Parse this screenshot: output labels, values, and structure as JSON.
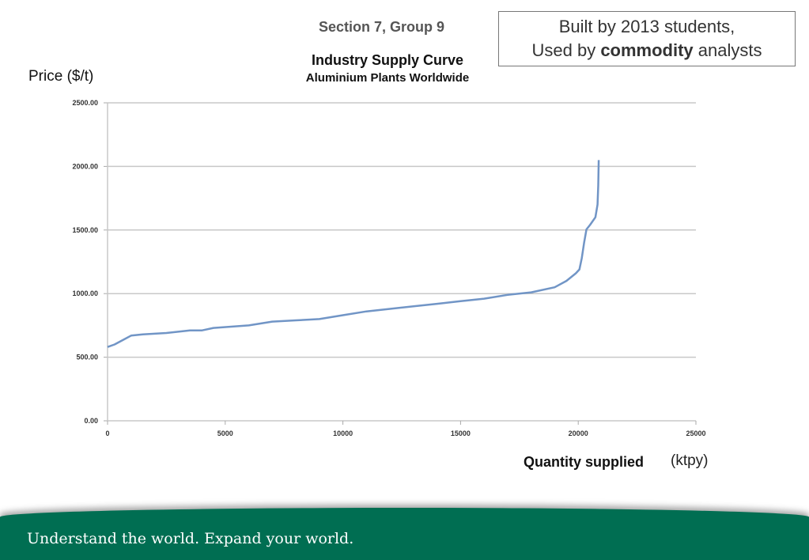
{
  "header": {
    "section": "Section 7, Group 9",
    "badge_line1": "Built by 2013 students,",
    "badge_line2_prefix": "Used by ",
    "badge_line2_bold": "commodity",
    "badge_line2_suffix": " analysts"
  },
  "footer": {
    "tagline": "Understand the world. Expand your world.",
    "color": "#006e52"
  },
  "chart_data": {
    "type": "line",
    "title": "Industry Supply Curve",
    "subtitle": "Aluminium Plants Worldwide",
    "ylabel": "Price ($/t)",
    "xlabel": "Quantity supplied",
    "xunit": "(ktpy)",
    "xlim": [
      0,
      25000
    ],
    "ylim": [
      0,
      2500
    ],
    "xticks": [
      "0",
      "5000",
      "10000",
      "15000",
      "20000",
      "25000"
    ],
    "yticks": [
      "0.00",
      "500.00",
      "1000.00",
      "1500.00",
      "2000.00",
      "2500.00"
    ],
    "grid": "horizontal",
    "line_color": "#7195c6",
    "x": [
      0,
      300,
      700,
      1000,
      1500,
      2500,
      3500,
      4000,
      4500,
      6000,
      7000,
      8000,
      9000,
      10000,
      11000,
      12000,
      13000,
      14000,
      15000,
      16000,
      17000,
      18000,
      19000,
      19500,
      19900,
      20050,
      20150,
      20250,
      20350,
      20500,
      20730,
      20820,
      20850,
      20870
    ],
    "y": [
      580,
      600,
      640,
      670,
      680,
      690,
      710,
      710,
      730,
      750,
      780,
      790,
      800,
      830,
      860,
      880,
      900,
      920,
      940,
      960,
      990,
      1010,
      1050,
      1100,
      1160,
      1190,
      1280,
      1400,
      1505,
      1540,
      1600,
      1700,
      1850,
      2050
    ]
  }
}
